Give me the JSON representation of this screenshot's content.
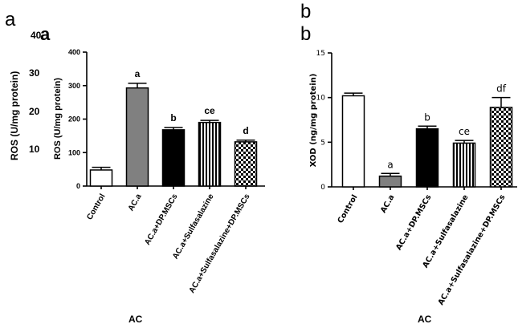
{
  "colors": {
    "axis": "#000000",
    "gray": "#808080",
    "black": "#000000",
    "white": "#ffffff"
  },
  "chart_data": [
    {
      "type": "bar",
      "panel": "a",
      "ghost_letter": "a",
      "ghost_tick": "40",
      "ghost_ylabel": "ROS (U/mg protein)",
      "ghost_ticks": [
        "30",
        "20",
        "10"
      ],
      "ghost_fragment": "AC",
      "ylabel": "ROS (U/mg protein)",
      "ylim": [
        0,
        400
      ],
      "yticks": [
        0,
        100,
        200,
        300,
        400
      ],
      "categories": [
        "Control",
        "AC.a",
        "AC.a+DP.MSCs",
        "AC.a+Sulfasalazine",
        "AC.a+Sulfasalazine+DP.MSCs"
      ],
      "values": [
        48,
        293,
        168,
        190,
        132
      ],
      "errors": [
        8,
        14,
        7,
        6,
        5
      ],
      "fills": [
        "white",
        "gray",
        "black",
        "vstripe",
        "check"
      ],
      "sig_labels": [
        "",
        "a",
        "b",
        "ce",
        "d"
      ]
    },
    {
      "type": "bar",
      "panel": "b",
      "ghost_letter": "b",
      "ghost_fragment": "AC",
      "ylabel": "XOD (ng/mg protein)",
      "ylim": [
        0,
        15
      ],
      "yticks": [
        0,
        5,
        10,
        15
      ],
      "categories": [
        "Control",
        "AC.a",
        "AC.a+DP.MSCs",
        "AC.a+Sulfasalazine",
        "AC.a+Sulfasalazine+DP.MSCs"
      ],
      "values": [
        10.2,
        1.2,
        6.5,
        4.9,
        8.9
      ],
      "errors": [
        0.3,
        0.3,
        0.3,
        0.3,
        1.1
      ],
      "fills": [
        "white",
        "gray",
        "black",
        "vstripe",
        "check"
      ],
      "sig_labels": [
        "",
        "a",
        "b",
        "ce",
        "df"
      ]
    }
  ]
}
